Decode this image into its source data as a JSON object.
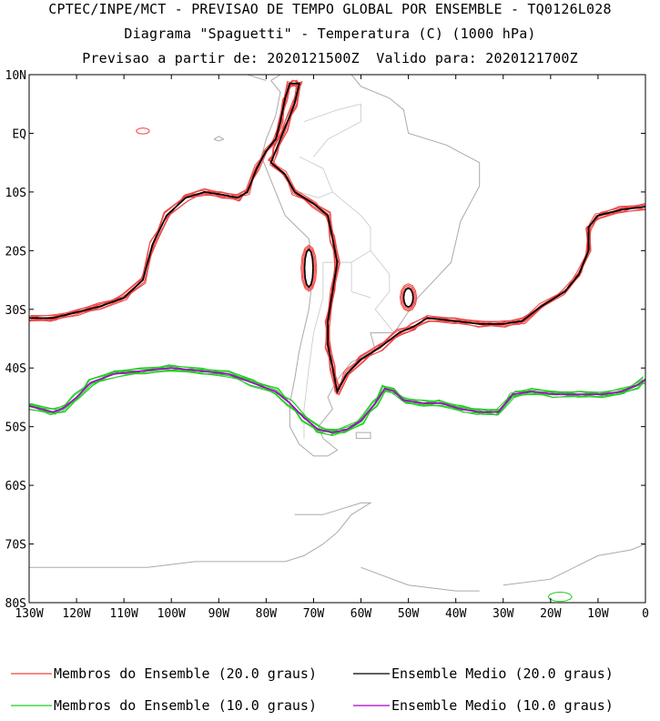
{
  "title": {
    "line1": "CPTEC/INPE/MCT - PREVISAO DE TEMPO GLOBAL POR ENSEMBLE - TQ0126L028",
    "line2": "Diagrama \"Spaguetti\" - Temperatura (C) (1000 hPa)",
    "line3": "Previsao a partir de: 2020121500Z  Valido para: 2020121700Z"
  },
  "map": {
    "lon_range": [
      -130,
      0
    ],
    "lat_range": [
      -80,
      10
    ],
    "lat_ticks": [
      {
        "value": 10,
        "label": "10N"
      },
      {
        "value": 0,
        "label": "EQ"
      },
      {
        "value": -10,
        "label": "10S"
      },
      {
        "value": -20,
        "label": "20S"
      },
      {
        "value": -30,
        "label": "30S"
      },
      {
        "value": -40,
        "label": "40S"
      },
      {
        "value": -50,
        "label": "50S"
      },
      {
        "value": -60,
        "label": "60S"
      },
      {
        "value": -70,
        "label": "70S"
      },
      {
        "value": -80,
        "label": "80S"
      }
    ],
    "lon_ticks": [
      {
        "value": -130,
        "label": "130W"
      },
      {
        "value": -120,
        "label": "120W"
      },
      {
        "value": -110,
        "label": "110W"
      },
      {
        "value": -100,
        "label": "100W"
      },
      {
        "value": -90,
        "label": "90W"
      },
      {
        "value": -80,
        "label": "80W"
      },
      {
        "value": -70,
        "label": "70W"
      },
      {
        "value": -60,
        "label": "60W"
      },
      {
        "value": -50,
        "label": "50W"
      },
      {
        "value": -40,
        "label": "40W"
      },
      {
        "value": -30,
        "label": "30W"
      },
      {
        "value": -20,
        "label": "20W"
      },
      {
        "value": -10,
        "label": "10W"
      },
      {
        "value": 0,
        "label": "0"
      }
    ]
  },
  "colors": {
    "members_20": "#ee4444",
    "mean_20": "#000000",
    "members_10": "#22cc22",
    "mean_10": "#aa00cc",
    "coast": "#aaaaaa"
  },
  "legend": [
    {
      "label": "Membros do Ensemble (20.0 graus)",
      "color": "#ee4444"
    },
    {
      "label": "Ensemble Medio (20.0 graus)",
      "color": "#000000"
    },
    {
      "label": "Membros do Ensemble (10.0 graus)",
      "color": "#22cc22"
    },
    {
      "label": "Ensemble Medio (10.0 graus)",
      "color": "#aa00cc"
    }
  ],
  "contours": {
    "iso20": [
      [
        -130,
        -31.5
      ],
      [
        -125,
        -31.5
      ],
      [
        -120,
        -30.5
      ],
      [
        -115,
        -29.5
      ],
      [
        -110,
        -28
      ],
      [
        -106,
        -25
      ],
      [
        -104,
        -19
      ],
      [
        -101,
        -14
      ],
      [
        -97,
        -11
      ],
      [
        -93,
        -10
      ],
      [
        -89,
        -10.5
      ],
      [
        -86,
        -11
      ],
      [
        -84,
        -10
      ],
      [
        -82,
        -6
      ],
      [
        -80,
        -3
      ],
      [
        -78,
        -1
      ],
      [
        -77,
        2
      ],
      [
        -76,
        6
      ],
      [
        -75,
        8.5
      ],
      [
        -73,
        8.5
      ],
      [
        -74,
        5
      ],
      [
        -76,
        1
      ],
      [
        -78,
        -3
      ],
      [
        -79,
        -5
      ],
      [
        -76,
        -7
      ],
      [
        -74,
        -10
      ],
      [
        -70,
        -12
      ],
      [
        -67,
        -14
      ],
      [
        -66,
        -18
      ],
      [
        -65,
        -22
      ],
      [
        -66,
        -27
      ],
      [
        -67,
        -32
      ],
      [
        -67,
        -36
      ],
      [
        -66,
        -40
      ],
      [
        -65,
        -44
      ],
      [
        -63,
        -41
      ],
      [
        -60,
        -38.5
      ],
      [
        -56,
        -36.5
      ],
      [
        -52,
        -34
      ],
      [
        -49,
        -33
      ],
      [
        -46,
        -31.5
      ],
      [
        -40,
        -32
      ],
      [
        -35,
        -32.5
      ],
      [
        -30,
        -32.5
      ],
      [
        -26,
        -32
      ],
      [
        -22,
        -29.5
      ],
      [
        -17,
        -27
      ],
      [
        -14,
        -24
      ],
      [
        -12,
        -20
      ],
      [
        -12,
        -16
      ],
      [
        -10,
        -14
      ],
      [
        -5,
        -13
      ],
      [
        0,
        -12.5
      ]
    ],
    "iso10": [
      [
        -130,
        -46.5
      ],
      [
        -125,
        -47.5
      ],
      [
        -123,
        -47
      ],
      [
        -120,
        -45
      ],
      [
        -117,
        -42.5
      ],
      [
        -112,
        -41
      ],
      [
        -106,
        -40.5
      ],
      [
        -100,
        -40
      ],
      [
        -94,
        -40.5
      ],
      [
        -88,
        -41
      ],
      [
        -83,
        -42.5
      ],
      [
        -78,
        -44
      ],
      [
        -75,
        -46
      ],
      [
        -72,
        -48.5
      ],
      [
        -69,
        -50.5
      ],
      [
        -66,
        -51
      ],
      [
        -63,
        -50.5
      ],
      [
        -60,
        -49
      ],
      [
        -57,
        -46
      ],
      [
        -55,
        -43.5
      ],
      [
        -53,
        -44
      ],
      [
        -51,
        -45.5
      ],
      [
        -47,
        -46
      ],
      [
        -43,
        -46
      ],
      [
        -39,
        -47
      ],
      [
        -35,
        -47.5
      ],
      [
        -31,
        -47.5
      ],
      [
        -28,
        -44.5
      ],
      [
        -24,
        -44
      ],
      [
        -19,
        -44.5
      ],
      [
        -14,
        -44.5
      ],
      [
        -9,
        -44.5
      ],
      [
        -5,
        -44
      ],
      [
        -2,
        -43
      ],
      [
        0,
        -42
      ]
    ]
  }
}
